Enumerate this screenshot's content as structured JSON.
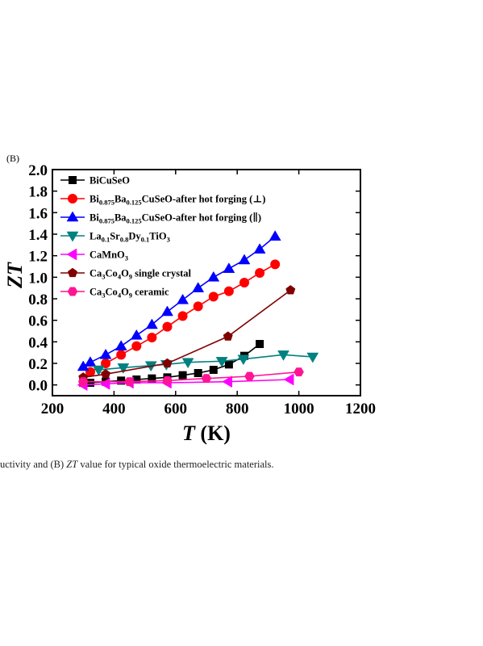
{
  "panel_label": "(B)",
  "caption": {
    "prefix": "uctivity and (B) ",
    "italic": "ZT",
    "suffix": " value for typical oxide thermoelectric materials."
  },
  "chart_data": {
    "type": "line",
    "title": "",
    "xlabel": {
      "italic": "T",
      "rest": " (K)"
    },
    "ylabel": "ZT",
    "xlim": [
      200,
      1200
    ],
    "ylim": [
      -0.1,
      2.0
    ],
    "xticks": [
      200,
      400,
      600,
      800,
      1000,
      1200
    ],
    "yticks": [
      0.0,
      0.2,
      0.4,
      0.6,
      0.8,
      1.0,
      1.2,
      1.4,
      1.6,
      1.8,
      2.0
    ],
    "legend_position": "top-left",
    "series": [
      {
        "name": "BiCuSeO",
        "legend": [
          {
            "t": "BiCuSeO"
          }
        ],
        "color": "#000000",
        "marker": "square",
        "x": [
          300,
          323,
          373,
          423,
          473,
          523,
          573,
          623,
          673,
          723,
          773,
          823,
          873
        ],
        "y": [
          0.02,
          0.02,
          0.03,
          0.04,
          0.05,
          0.06,
          0.07,
          0.09,
          0.11,
          0.14,
          0.19,
          0.27,
          0.38
        ]
      },
      {
        "name": "Bi0.875Ba0.125CuSeO-after hot forging (⊥)",
        "legend": [
          {
            "t": "Bi"
          },
          {
            "t": "0.875",
            "sub": true
          },
          {
            "t": "Ba"
          },
          {
            "t": "0.125",
            "sub": true
          },
          {
            "t": "CuSeO-after hot forging (⊥)"
          }
        ],
        "color": "#ff0000",
        "marker": "circle",
        "x": [
          323,
          373,
          423,
          473,
          523,
          573,
          623,
          673,
          723,
          773,
          823,
          873,
          923
        ],
        "y": [
          0.12,
          0.2,
          0.28,
          0.36,
          0.44,
          0.54,
          0.64,
          0.73,
          0.82,
          0.87,
          0.95,
          1.04,
          1.12
        ]
      },
      {
        "name": "Bi0.875Ba0.125CuSeO-after hot forging (∥)",
        "legend": [
          {
            "t": "Bi"
          },
          {
            "t": "0.875",
            "sub": true
          },
          {
            "t": "Ba"
          },
          {
            "t": "0.125",
            "sub": true
          },
          {
            "t": "CuSeO-after hot forging (∥)"
          }
        ],
        "color": "#0000ff",
        "marker": "triangle-up",
        "x": [
          300,
          323,
          373,
          423,
          473,
          523,
          573,
          623,
          673,
          723,
          773,
          823,
          873,
          923
        ],
        "y": [
          0.17,
          0.21,
          0.28,
          0.36,
          0.46,
          0.56,
          0.68,
          0.79,
          0.9,
          1.0,
          1.08,
          1.16,
          1.26,
          1.38
        ]
      },
      {
        "name": "La0.1Sr0.8Dy0.1TiO3",
        "legend": [
          {
            "t": "La"
          },
          {
            "t": "0.1",
            "sub": true
          },
          {
            "t": "Sr"
          },
          {
            "t": "0.8",
            "sub": true
          },
          {
            "t": "Dy"
          },
          {
            "t": "0.1",
            "sub": true
          },
          {
            "t": "TiO"
          },
          {
            "t": "3",
            "sub": true
          }
        ],
        "color": "#008080",
        "marker": "triangle-down",
        "x": [
          350,
          430,
          520,
          570,
          640,
          750,
          820,
          950,
          1045
        ],
        "y": [
          0.14,
          0.16,
          0.18,
          0.19,
          0.21,
          0.22,
          0.24,
          0.28,
          0.26
        ]
      },
      {
        "name": "CaMnO3",
        "legend": [
          {
            "t": "CaMnO"
          },
          {
            "t": "3",
            "sub": true
          }
        ],
        "color": "#ff00ff",
        "marker": "triangle-left",
        "x": [
          300,
          373,
          450,
          573,
          770,
          970
        ],
        "y": [
          0.0,
          0.01,
          0.02,
          0.02,
          0.03,
          0.05
        ]
      },
      {
        "name": "Ca3Co4O9 single crystal",
        "legend": [
          {
            "t": "Ca"
          },
          {
            "t": "3",
            "sub": true
          },
          {
            "t": "Co"
          },
          {
            "t": "4",
            "sub": true
          },
          {
            "t": "O"
          },
          {
            "t": "9",
            "sub": true
          },
          {
            "t": " single crystal"
          }
        ],
        "color": "#800000",
        "marker": "pentagon",
        "x": [
          300,
          373,
          573,
          770,
          973
        ],
        "y": [
          0.07,
          0.1,
          0.2,
          0.45,
          0.88
        ]
      },
      {
        "name": "Ca3Co4O9 ceramic",
        "legend": [
          {
            "t": "Ca"
          },
          {
            "t": "3",
            "sub": true
          },
          {
            "t": "Co"
          },
          {
            "t": "4",
            "sub": true
          },
          {
            "t": "O"
          },
          {
            "t": "9",
            "sub": true
          },
          {
            "t": "  ceramic"
          }
        ],
        "color": "#ff1493",
        "marker": "hexagon",
        "x": [
          300,
          450,
          573,
          700,
          840,
          1000
        ],
        "y": [
          0.03,
          0.03,
          0.04,
          0.06,
          0.08,
          0.12
        ]
      }
    ]
  }
}
